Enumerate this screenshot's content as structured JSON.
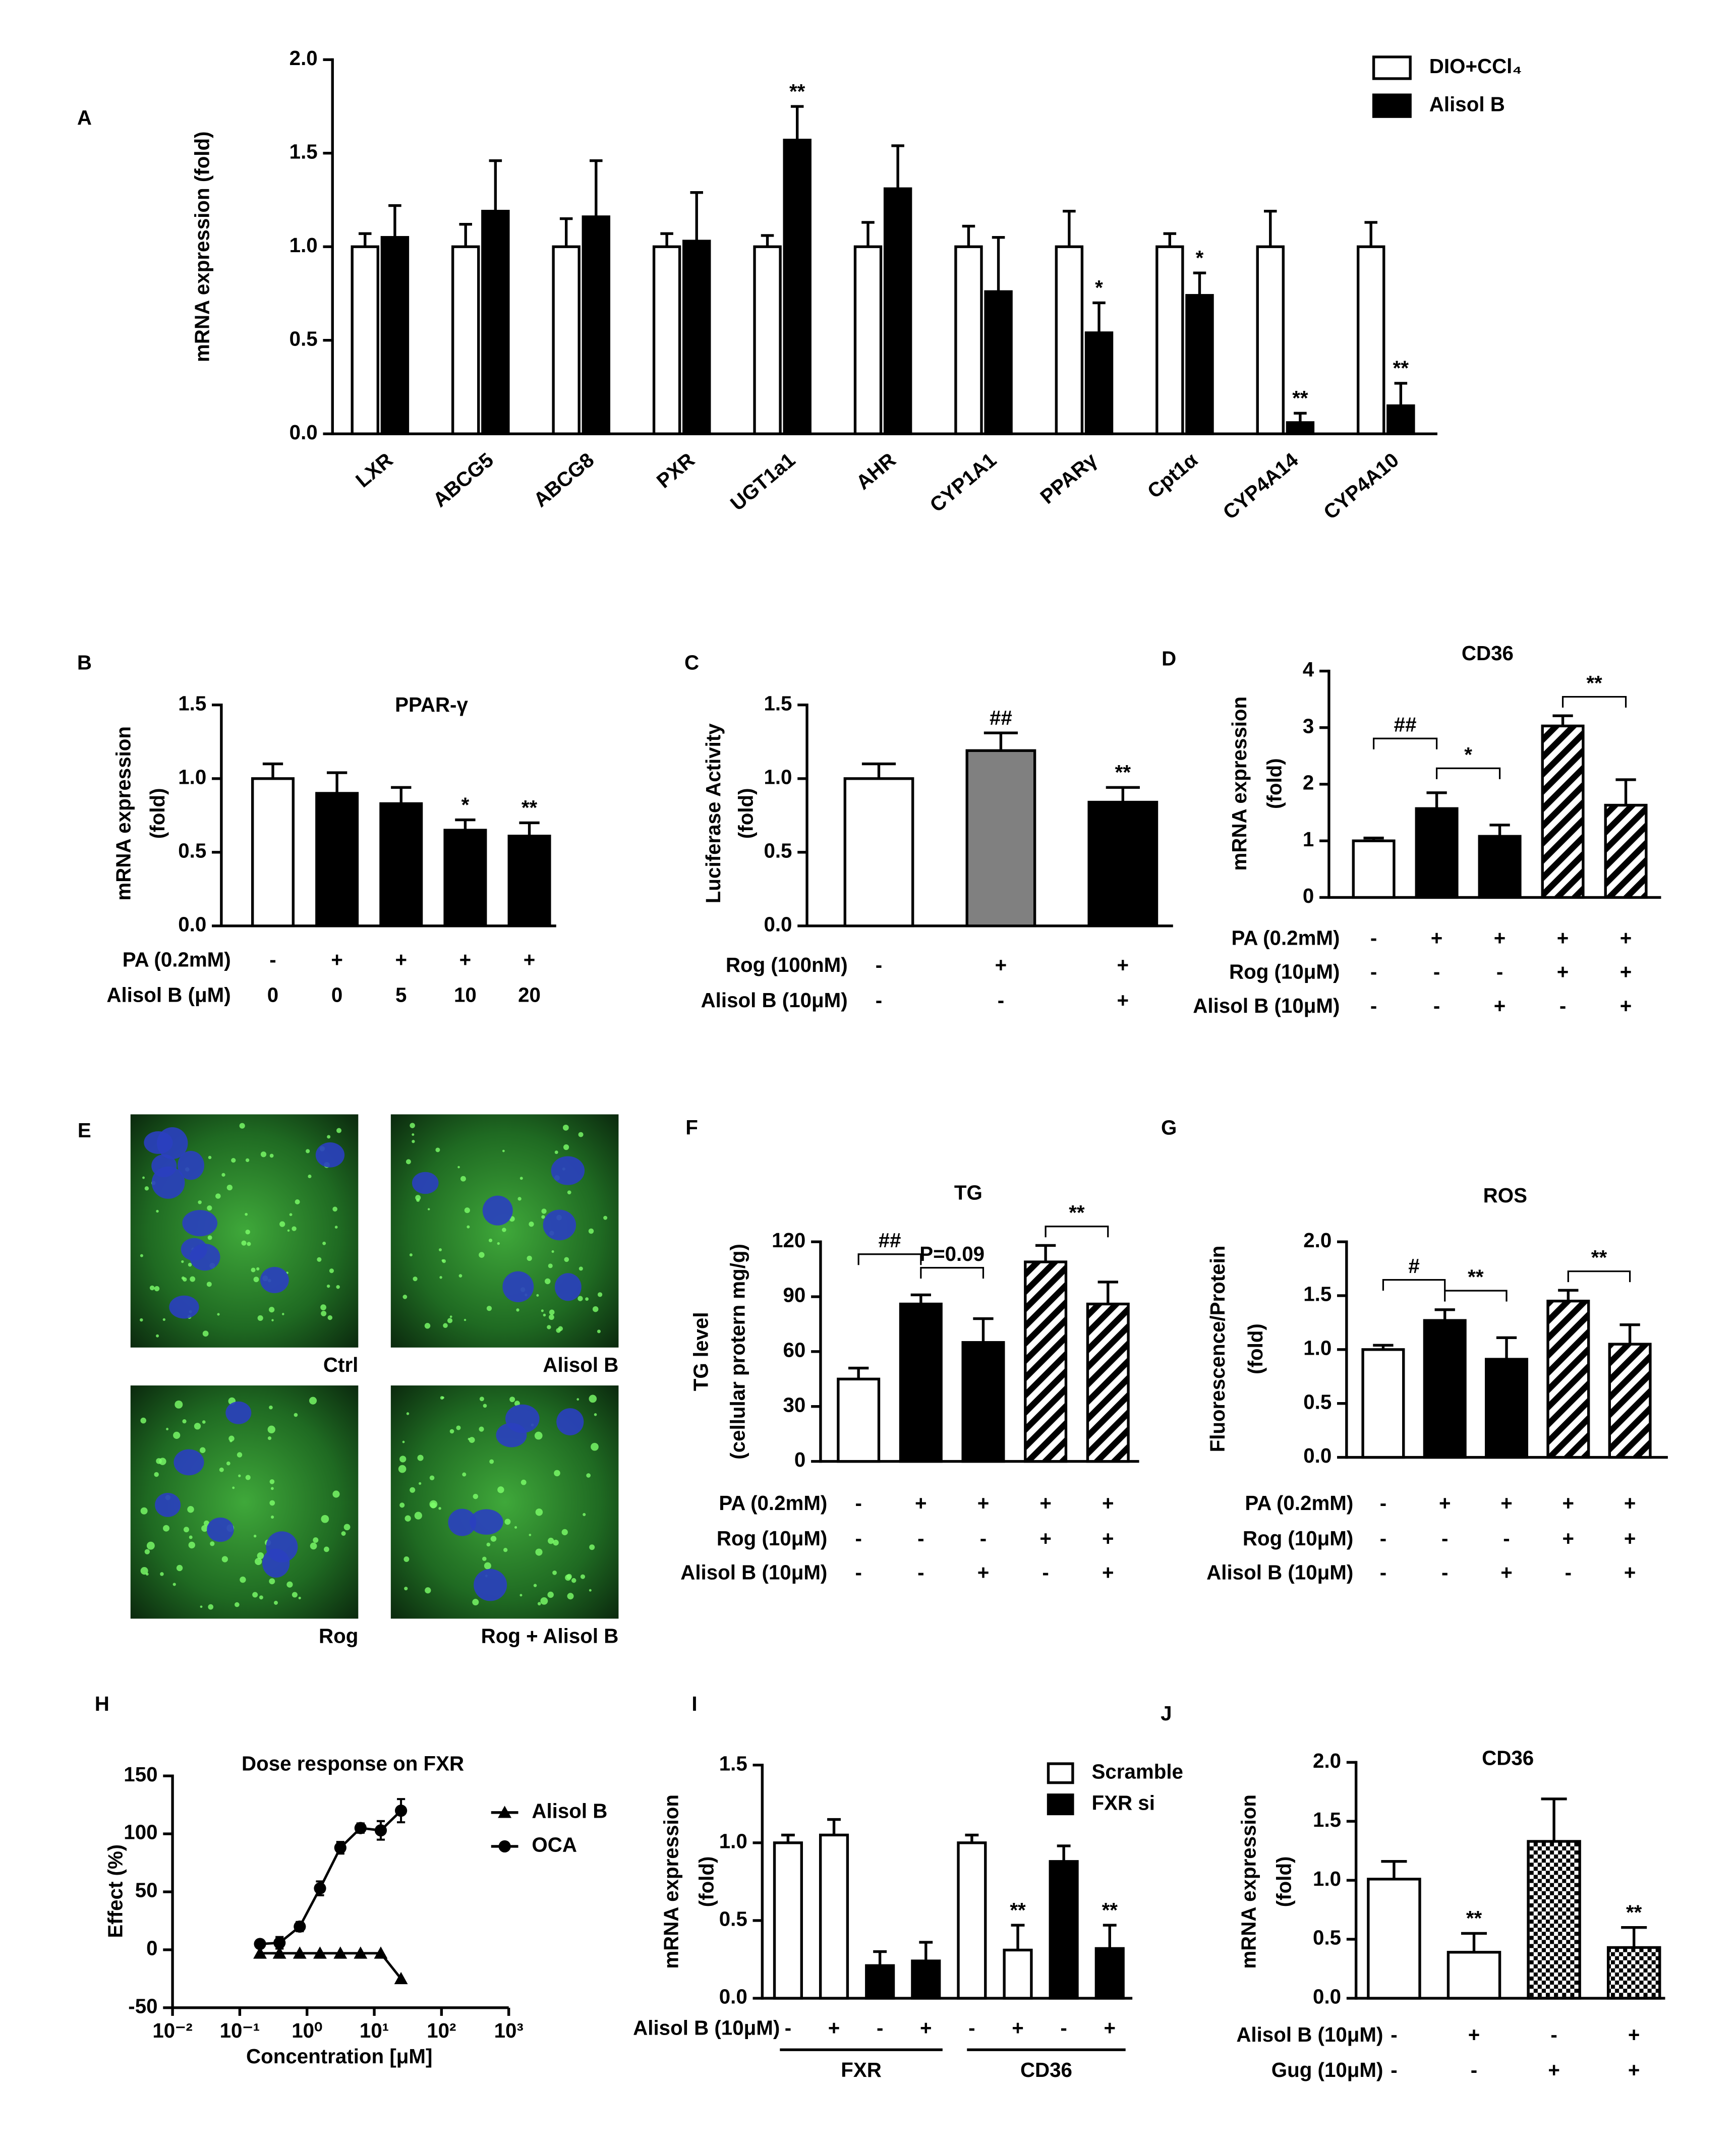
{
  "chart_data": [
    {
      "type": "bar",
      "label": "A",
      "ylabel": "mRNA expression (fold)",
      "categories": [
        "LXR",
        "ABCG5",
        "ABCG8",
        "PXR",
        "UGT1a1",
        "AHR",
        "CYP1A1",
        "PPARγ",
        "Cpt1α",
        "CYP4A14",
        "CYP4A10"
      ],
      "series": [
        {
          "name": "DIO+CCl₄",
          "style": "white",
          "values": [
            1.0,
            1.0,
            1.0,
            1.0,
            1.0,
            1.0,
            1.0,
            1.0,
            1.0,
            1.0,
            1.0
          ],
          "errors": [
            0.07,
            0.12,
            0.15,
            0.07,
            0.06,
            0.13,
            0.11,
            0.19,
            0.07,
            0.19,
            0.13
          ],
          "annotations": [
            null,
            null,
            null,
            null,
            null,
            null,
            null,
            null,
            null,
            null,
            null
          ]
        },
        {
          "name": "Alisol B",
          "style": "black",
          "values": [
            1.05,
            1.19,
            1.16,
            1.03,
            1.57,
            1.31,
            0.76,
            0.54,
            0.74,
            0.06,
            0.15
          ],
          "errors": [
            0.17,
            0.27,
            0.3,
            0.26,
            0.18,
            0.23,
            0.29,
            0.16,
            0.12,
            0.05,
            0.12
          ],
          "annotations": [
            null,
            null,
            null,
            null,
            "**",
            null,
            null,
            "*",
            "*",
            "**",
            "**"
          ]
        }
      ],
      "ylim": [
        0,
        2
      ],
      "yticks": [
        {
          "value": 0,
          "label": "0.0"
        },
        0.5,
        {
          "value": 1,
          "label": "1.0"
        },
        1.5,
        {
          "value": 2,
          "label": "2.0"
        }
      ]
    },
    {
      "type": "bar",
      "label": "B",
      "title": "PPAR-γ",
      "ylabel": [
        "mRNA expression",
        "(fold)"
      ],
      "values": [
        1.0,
        0.9,
        0.83,
        0.65,
        0.61
      ],
      "errors": [
        0.1,
        0.14,
        0.11,
        0.07,
        0.09
      ],
      "styles": [
        "white",
        "black",
        "black",
        "black",
        "black"
      ],
      "annotations": [
        null,
        null,
        null,
        "*",
        "**"
      ],
      "ylim": [
        0,
        1.5
      ],
      "yticks": [
        {
          "value": 0,
          "label": "0.0"
        },
        0.5,
        {
          "value": 1,
          "label": "1.0"
        },
        1.5
      ],
      "conditions": [
        {
          "label": "PA (0.2mM)",
          "signs": [
            "-",
            "+",
            "+",
            "+",
            "+"
          ]
        },
        {
          "label": "Alisol B (μM)",
          "signs": [
            0,
            0,
            5,
            10,
            20
          ]
        }
      ]
    },
    {
      "type": "bar",
      "label": "C",
      "ylabel": [
        "Luciferase Activity",
        "(fold)"
      ],
      "values": [
        1.0,
        1.19,
        0.84
      ],
      "errors": [
        0.1,
        0.12,
        0.1
      ],
      "styles": [
        "white",
        "gray",
        "black"
      ],
      "annotations": [
        null,
        "##",
        "**"
      ],
      "ylim": [
        0,
        1.5
      ],
      "yticks": [
        {
          "value": 0,
          "label": "0.0"
        },
        0.5,
        {
          "value": 1,
          "label": "1.0"
        },
        1.5
      ],
      "conditions": [
        {
          "label": "Rog (100nM)",
          "signs": [
            "-",
            "+",
            "+"
          ]
        },
        {
          "label": "Alisol B (10μM)",
          "signs": [
            "-",
            "-",
            "+"
          ]
        }
      ]
    },
    {
      "type": "bar",
      "label": "D",
      "title": "CD36",
      "ylabel": [
        "mRNA expression",
        "(fold)"
      ],
      "values": [
        1.0,
        1.57,
        1.08,
        3.03,
        1.63
      ],
      "errors": [
        0.05,
        0.28,
        0.2,
        0.18,
        0.45
      ],
      "styles": [
        "white",
        "black",
        "black",
        "hatched",
        "hatched"
      ],
      "brackets": [
        "##",
        "*",
        "**"
      ],
      "ylim": [
        0,
        4
      ],
      "yticks": [
        0,
        1,
        2,
        3,
        4
      ],
      "conditions": [
        {
          "label": "PA (0.2mM)",
          "signs": [
            "-",
            "+",
            "+",
            "+",
            "+"
          ]
        },
        {
          "label": "Rog (10μM)",
          "signs": [
            "-",
            "-",
            "-",
            "+",
            "+"
          ]
        },
        {
          "label": "Alisol B (10μM)",
          "signs": [
            "-",
            "-",
            "+",
            "-",
            "+"
          ]
        }
      ]
    },
    {
      "type": "bar",
      "label": "F",
      "title": "TG",
      "ylabel": [
        "TG level",
        "(cellular protern mg/g)"
      ],
      "values": [
        45,
        86,
        65,
        109,
        86
      ],
      "errors": [
        6,
        5,
        13,
        9,
        12
      ],
      "styles": [
        "white",
        "black",
        "black",
        "hatched",
        "hatched"
      ],
      "brackets": [
        "##",
        "P=0.09",
        "**"
      ],
      "ylim": [
        0,
        120
      ],
      "yticks": [
        0,
        30,
        60,
        90,
        120
      ],
      "conditions": [
        {
          "label": "PA (0.2mM)",
          "signs": [
            "-",
            "+",
            "+",
            "+",
            "+"
          ]
        },
        {
          "label": "Rog (10μM)",
          "signs": [
            "-",
            "-",
            "-",
            "+",
            "+"
          ]
        },
        {
          "label": "Alisol B (10μM)",
          "signs": [
            "-",
            "-",
            "+",
            "-",
            "+"
          ]
        }
      ]
    },
    {
      "type": "bar",
      "label": "G",
      "title": "ROS",
      "ylabel": [
        "Fluorescence/Protein",
        "(fold)"
      ],
      "values": [
        1.0,
        1.27,
        0.91,
        1.45,
        1.05
      ],
      "errors": [
        0.04,
        0.1,
        0.2,
        0.1,
        0.18
      ],
      "styles": [
        "white",
        "black",
        "black",
        "hatched",
        "hatched"
      ],
      "brackets": [
        "#",
        "**",
        "**"
      ],
      "ylim": [
        0,
        2
      ],
      "yticks": [
        {
          "value": 0,
          "label": "0.0"
        },
        0.5,
        {
          "value": 1,
          "label": "1.0"
        },
        1.5,
        {
          "value": 2,
          "label": "2.0"
        }
      ],
      "conditions": [
        {
          "label": "PA (0.2mM)",
          "signs": [
            "-",
            "+",
            "+",
            "+",
            "+"
          ]
        },
        {
          "label": "Rog (10μM)",
          "signs": [
            "-",
            "-",
            "-",
            "+",
            "+"
          ]
        },
        {
          "label": "Alisol B (10μM)",
          "signs": [
            "-",
            "-",
            "+",
            "-",
            "+"
          ]
        }
      ]
    },
    {
      "type": "line",
      "label": "H",
      "title": "Dose response on FXR",
      "xlabel": "Concentration [μM]",
      "ylabel": "Effect (%)",
      "xscale": "log",
      "x": [
        0.2,
        0.39,
        0.78,
        1.56,
        3.13,
        6.25,
        12.5,
        25
      ],
      "series": [
        {
          "name": "Alisol B",
          "marker": "triangle",
          "values": [
            -3,
            -3,
            -3,
            -3,
            -3,
            -3,
            -3,
            -25
          ]
        },
        {
          "name": "OCA",
          "marker": "circle",
          "values": [
            5,
            6,
            20,
            53,
            88,
            105,
            103,
            120
          ],
          "errors": [
            3,
            5,
            4,
            6,
            5,
            4,
            8,
            10
          ]
        }
      ],
      "xlim": [
        0.01,
        1000
      ],
      "xticks": [
        {
          "value": 0.01,
          "label": "10⁻²"
        },
        {
          "value": 0.1,
          "label": "10⁻¹"
        },
        {
          "value": 1,
          "label": "10⁰"
        },
        {
          "value": 10,
          "label": "10¹"
        },
        {
          "value": 100,
          "label": "10²"
        },
        {
          "value": 1000,
          "label": "10³"
        }
      ],
      "ylim": [
        -50,
        150
      ],
      "yticks": [
        -50,
        0,
        50,
        100,
        150
      ]
    },
    {
      "type": "bar",
      "label": "I",
      "ylabel": [
        "mRNA expression",
        "(fold)"
      ],
      "series": [
        {
          "name": "Scramble",
          "style": "white",
          "values": [
            1.0,
            1.05,
            null,
            null,
            1.0,
            0.31,
            null,
            null
          ],
          "errors": [
            0.05,
            0.1,
            null,
            null,
            0.05,
            0.16,
            null,
            null
          ],
          "annotations": [
            null,
            null,
            null,
            null,
            null,
            "**",
            null,
            null
          ]
        },
        {
          "name": "FXR si",
          "style": "black",
          "values": [
            null,
            null,
            0.21,
            0.24,
            null,
            null,
            0.88,
            0.32
          ],
          "errors": [
            null,
            null,
            0.09,
            0.12,
            null,
            null,
            0.1,
            0.15
          ],
          "annotations": [
            null,
            null,
            null,
            null,
            null,
            null,
            null,
            "**"
          ]
        }
      ],
      "ylim": [
        0,
        1.5
      ],
      "yticks": [
        {
          "value": 0,
          "label": "0.0"
        },
        0.5,
        {
          "value": 1,
          "label": "1.0"
        },
        1.5
      ],
      "conditions": [
        {
          "label": "Alisol B (10μM)",
          "signs": [
            "-",
            "+",
            "-",
            "+",
            "-",
            "+",
            "-",
            "+"
          ]
        }
      ],
      "groups": [
        "FXR",
        "CD36"
      ]
    },
    {
      "type": "bar",
      "label": "J",
      "title": "CD36",
      "ylabel": [
        "mRNA expression",
        "(fold)"
      ],
      "values": [
        1.01,
        0.39,
        1.33,
        0.43
      ],
      "errors": [
        0.15,
        0.16,
        0.36,
        0.17
      ],
      "styles": [
        "white",
        "white",
        "checkered",
        "checkered"
      ],
      "annotations": [
        null,
        "**",
        null,
        "**"
      ],
      "ylim": [
        0,
        2
      ],
      "yticks": [
        {
          "value": 0,
          "label": "0.0"
        },
        0.5,
        {
          "value": 1,
          "label": "1.0"
        },
        1.5,
        {
          "value": 2,
          "label": "2.0"
        }
      ],
      "conditions": [
        {
          "label": "Alisol B (10μM)",
          "signs": [
            "-",
            "+",
            "-",
            "+"
          ]
        },
        {
          "label": "Gug (10μM)",
          "signs": [
            "-",
            "-",
            "+",
            "+"
          ]
        }
      ]
    }
  ],
  "images": {
    "label": "E",
    "captions": [
      "Ctrl",
      "Alisol B",
      "Rog",
      "Rog + Alisol B"
    ]
  }
}
